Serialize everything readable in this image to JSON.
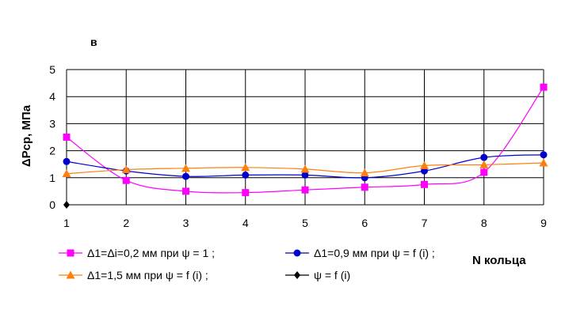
{
  "panel_label": "в",
  "chart_data": {
    "type": "line",
    "ylabel": "ΔPср, МПа",
    "xlabel": "N кольца",
    "x": [
      1,
      2,
      3,
      4,
      5,
      6,
      7,
      8,
      9
    ],
    "xlim": [
      1,
      9
    ],
    "ylim": [
      0,
      5
    ],
    "yticks": [
      0,
      1,
      2,
      3,
      4,
      5
    ],
    "grid": true,
    "legend_position": "bottom",
    "series": [
      {
        "name": "Δ1=Δi=0,2 мм при ψ = 1 ;",
        "color": "#ff00ff",
        "marker": "square",
        "values": [
          2.5,
          0.9,
          0.5,
          0.45,
          0.55,
          0.65,
          0.75,
          1.2,
          4.35
        ]
      },
      {
        "name": "Δ1=0,9 мм при ψ = f (i) ;",
        "color": "#0000cc",
        "marker": "circle",
        "values": [
          1.6,
          1.25,
          1.05,
          1.1,
          1.1,
          1.0,
          1.25,
          1.75,
          1.85
        ]
      },
      {
        "name": "Δ1=1,5 мм при ψ = f (i) ;",
        "color": "#ff7f0e",
        "marker": "triangle",
        "values": [
          1.15,
          1.3,
          1.35,
          1.38,
          1.32,
          1.18,
          1.45,
          1.48,
          1.55
        ]
      },
      {
        "name": "ψ = f (i)",
        "color": "#000000",
        "marker": "diamond",
        "values": [
          0,
          null,
          null,
          null,
          null,
          null,
          null,
          null,
          null
        ]
      }
    ]
  }
}
